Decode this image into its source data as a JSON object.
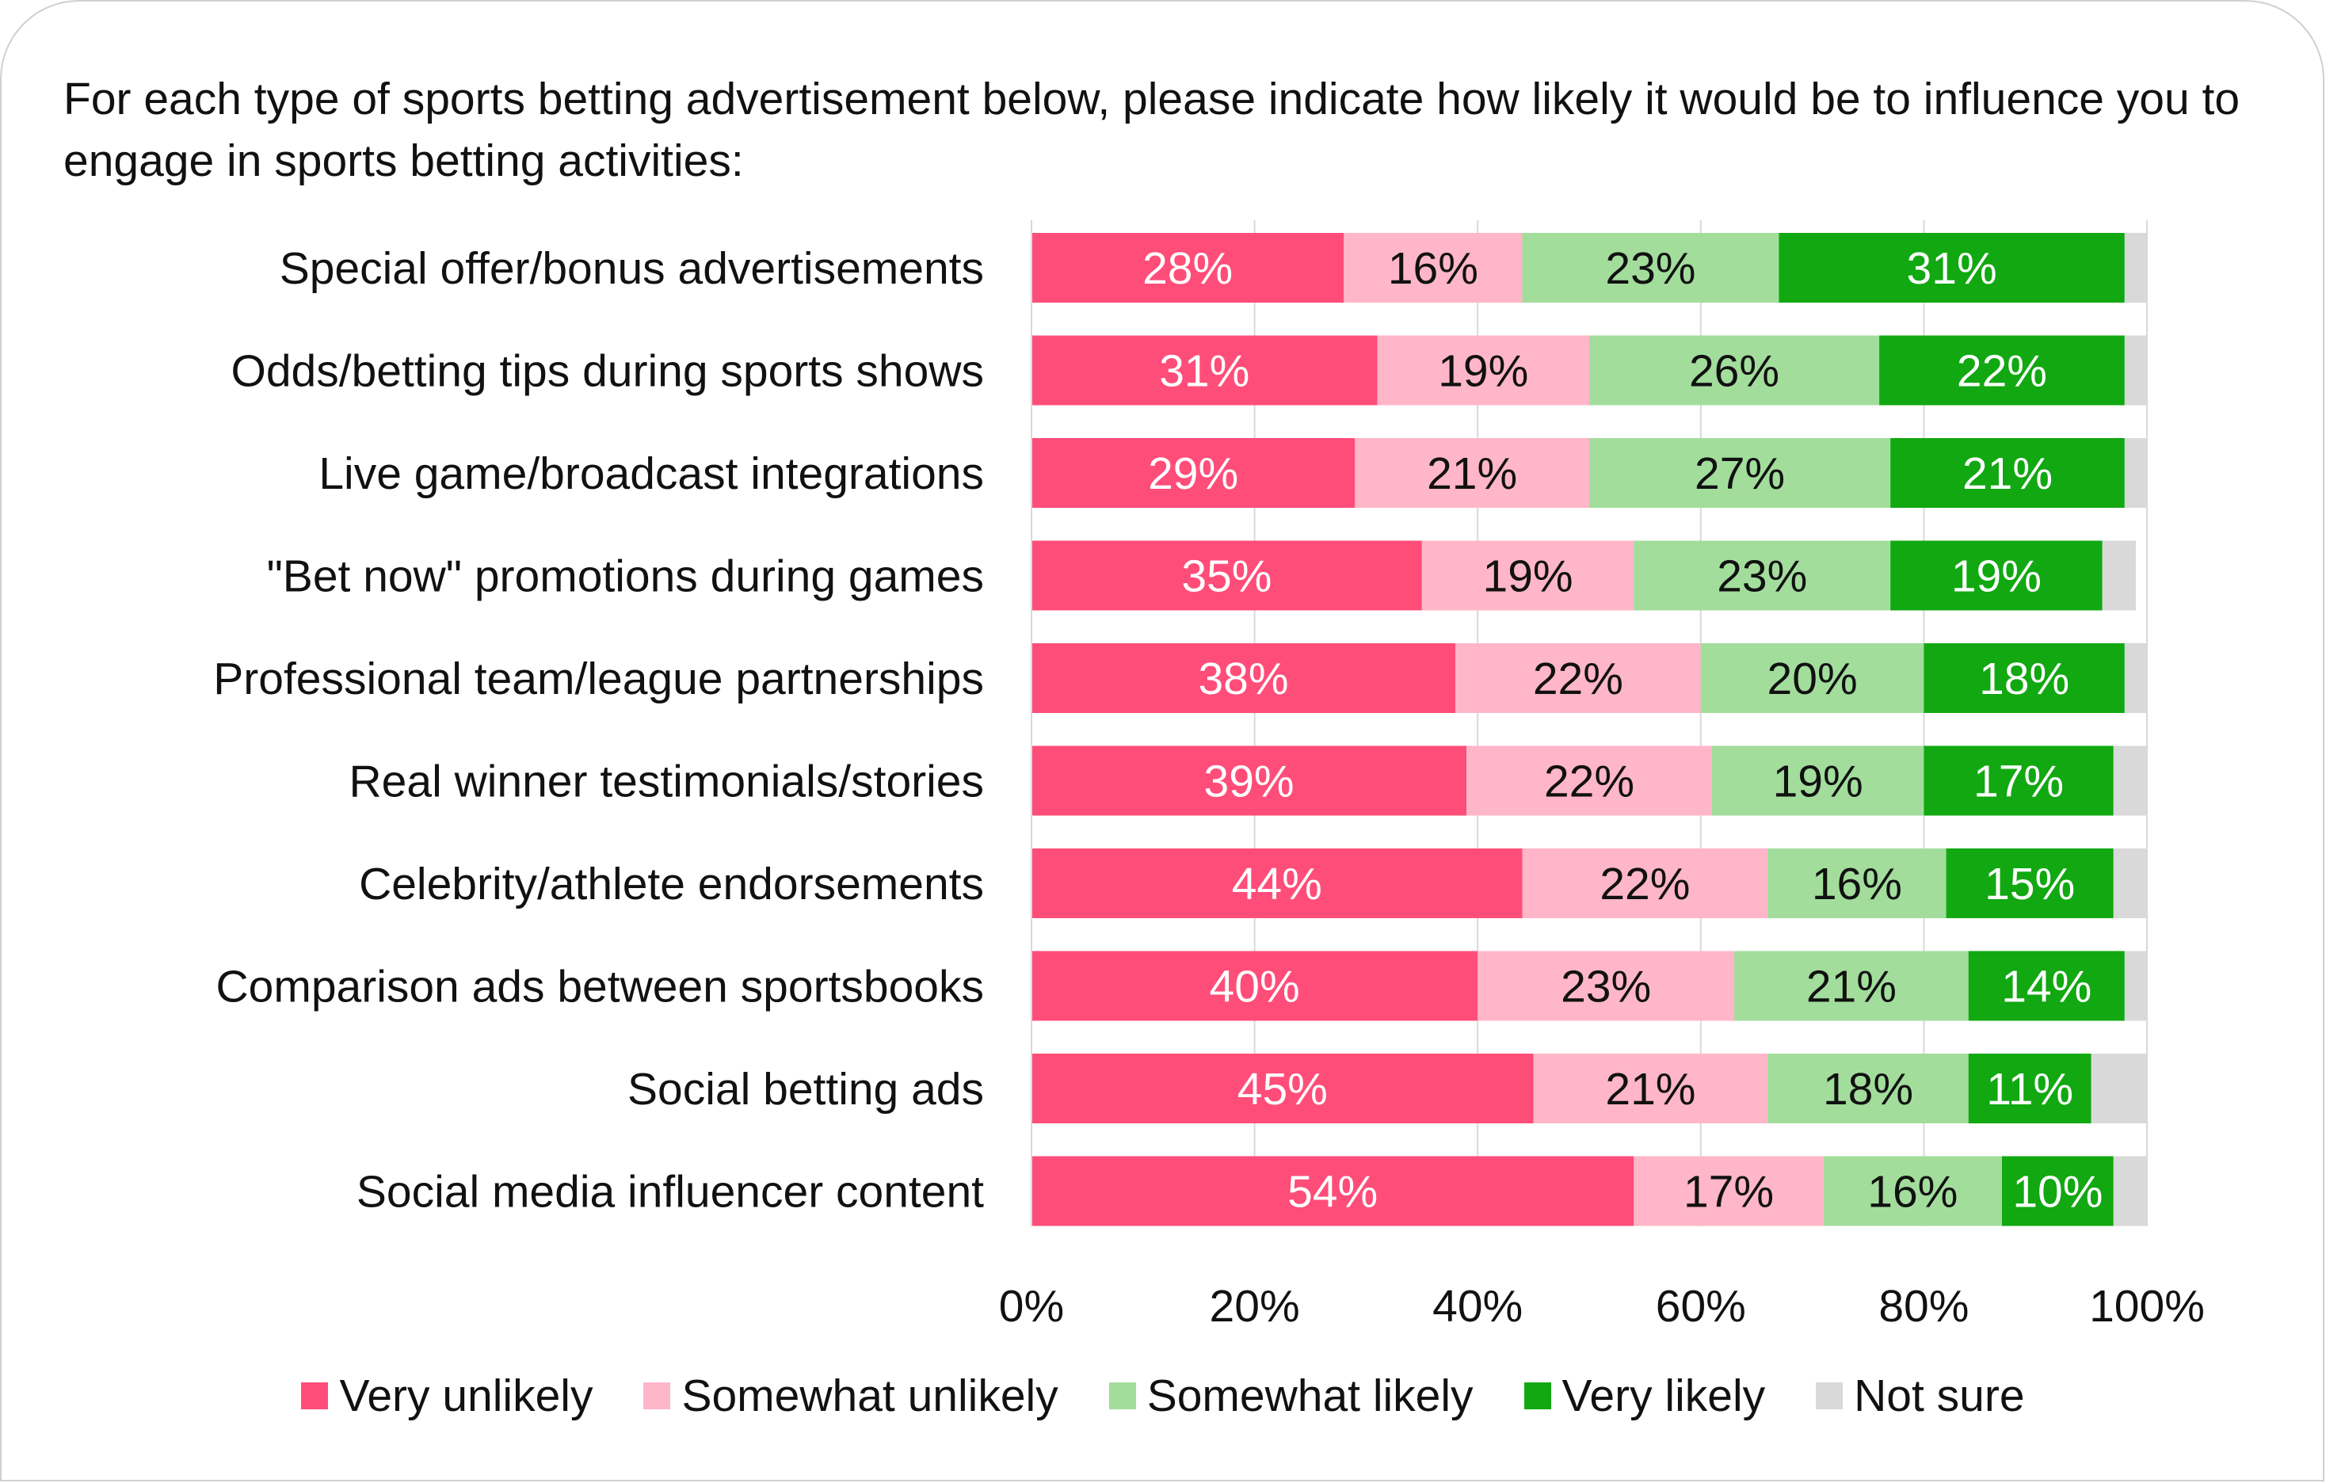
{
  "chart_data": {
    "type": "bar",
    "orientation": "horizontal",
    "stacked": true,
    "title": "For each type of sports betting advertisement below, please indicate how likely it would be to influence you to engage in sports betting activities:",
    "categories": [
      "Special offer/bonus advertisements",
      "Odds/betting tips during sports shows",
      "Live game/broadcast integrations",
      "\"Bet now\" promotions during games",
      "Professional team/league partnerships",
      "Real winner testimonials/stories",
      "Celebrity/athlete endorsements",
      "Comparison ads between sportsbooks",
      "Social betting ads",
      "Social media influencer content"
    ],
    "series": [
      {
        "name": "Very unlikely",
        "color": "#ff4d79",
        "label_color": "#ffffff",
        "values": [
          28,
          31,
          29,
          35,
          38,
          39,
          44,
          40,
          45,
          54
        ]
      },
      {
        "name": "Somewhat unlikely",
        "color": "#ffb6c8",
        "label_color": "#111111",
        "values": [
          16,
          19,
          21,
          19,
          22,
          22,
          22,
          23,
          21,
          17
        ]
      },
      {
        "name": "Somewhat likely",
        "color": "#a2dd9c",
        "label_color": "#111111",
        "values": [
          23,
          26,
          27,
          23,
          20,
          19,
          16,
          21,
          18,
          16
        ]
      },
      {
        "name": "Very likely",
        "color": "#11a811",
        "label_color": "#ffffff",
        "values": [
          31,
          22,
          21,
          19,
          18,
          17,
          15,
          14,
          11,
          10
        ]
      },
      {
        "name": "Not sure",
        "color": "#d9d9d9",
        "label_color": "#111111",
        "values": [
          2,
          2,
          2,
          3,
          2,
          3,
          3,
          2,
          5,
          3
        ],
        "show_labels": false
      }
    ],
    "xlim": [
      0,
      100
    ],
    "x_ticks": [
      "0%",
      "20%",
      "40%",
      "60%",
      "80%",
      "100%"
    ],
    "grid": true,
    "legend": "bottom"
  }
}
